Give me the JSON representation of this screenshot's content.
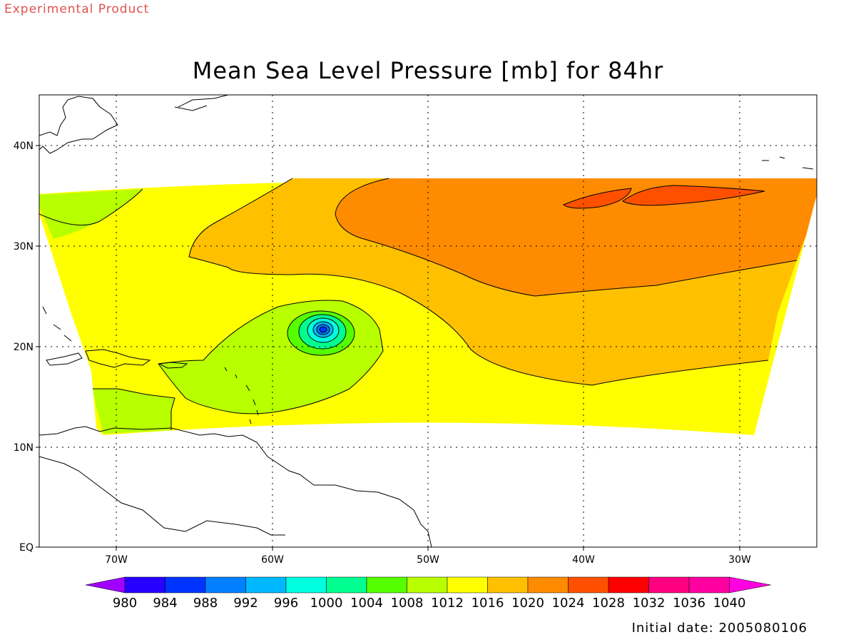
{
  "header": {
    "experimental_label": "Experimental Product",
    "title": "Mean Sea Level Pressure [mb] for 84hr"
  },
  "axes": {
    "x_ticks": [
      "70W",
      "60W",
      "50W",
      "40W",
      "30W"
    ],
    "y_ticks": [
      "EQ",
      "10N",
      "20N",
      "30N",
      "40N"
    ]
  },
  "colorbar": {
    "levels": [
      "980",
      "984",
      "988",
      "992",
      "996",
      "1000",
      "1004",
      "1008",
      "1012",
      "1016",
      "1020",
      "1024",
      "1028",
      "1032",
      "1036",
      "1040"
    ],
    "colors": [
      "#a000ff",
      "#2800ff",
      "#0034ff",
      "#0080ff",
      "#00b8ff",
      "#00ffe0",
      "#00ff90",
      "#55ff00",
      "#b8ff00",
      "#ffff00",
      "#ffc000",
      "#ff8c00",
      "#ff5000",
      "#ff0000",
      "#ff0080",
      "#ff00a0",
      "#ff00e0"
    ]
  },
  "fill_colors": {
    "l1008": "#b8ff00",
    "l1012": "#ffff00",
    "l1016": "#ffc000",
    "l1020": "#ff8c00",
    "l1024": "#ff5000",
    "l1004": "#55ff00",
    "l1000": "#00ff90",
    "l996": "#00ffe0",
    "l992": "#00b8ff",
    "l988": "#0080ff",
    "l984": "#0034ff"
  },
  "footer": {
    "initial_date": "Initial date: 2005080106"
  }
}
